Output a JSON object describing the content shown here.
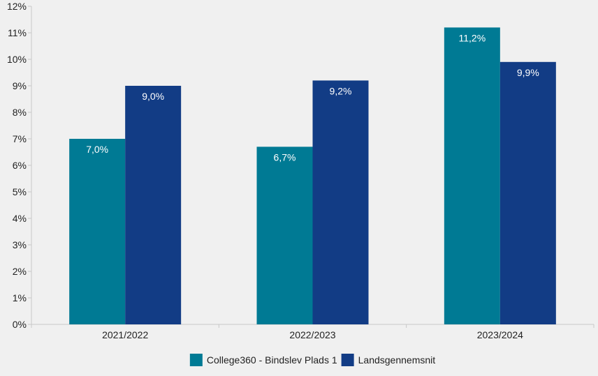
{
  "chart_data": {
    "type": "bar",
    "title": "",
    "xlabel": "",
    "ylabel": "",
    "categories": [
      "2021/2022",
      "2022/2023",
      "2023/2024"
    ],
    "series": [
      {
        "name": "College360 - Bindslev Plads 1",
        "values": [
          7.0,
          6.7,
          11.2
        ],
        "labels": [
          "7,0%",
          "6,7%",
          "11,2%"
        ],
        "color": "#007a94"
      },
      {
        "name": "Landsgennemsnit",
        "values": [
          9.0,
          9.2,
          9.9
        ],
        "labels": [
          "9,0%",
          "9,2%",
          "9,9%"
        ],
        "color": "#123c85"
      }
    ],
    "ylim": [
      0,
      12
    ],
    "yticks": [
      0,
      1,
      2,
      3,
      4,
      5,
      6,
      7,
      8,
      9,
      10,
      11,
      12
    ],
    "ytick_labels": [
      "0%",
      "1%",
      "2%",
      "3%",
      "4%",
      "5%",
      "6%",
      "7%",
      "8%",
      "9%",
      "10%",
      "11%",
      "12%"
    ],
    "grid": false,
    "legend_position": "bottom-center",
    "background_color": "#f0f0f0",
    "axis_color": "#c8c8c8"
  }
}
